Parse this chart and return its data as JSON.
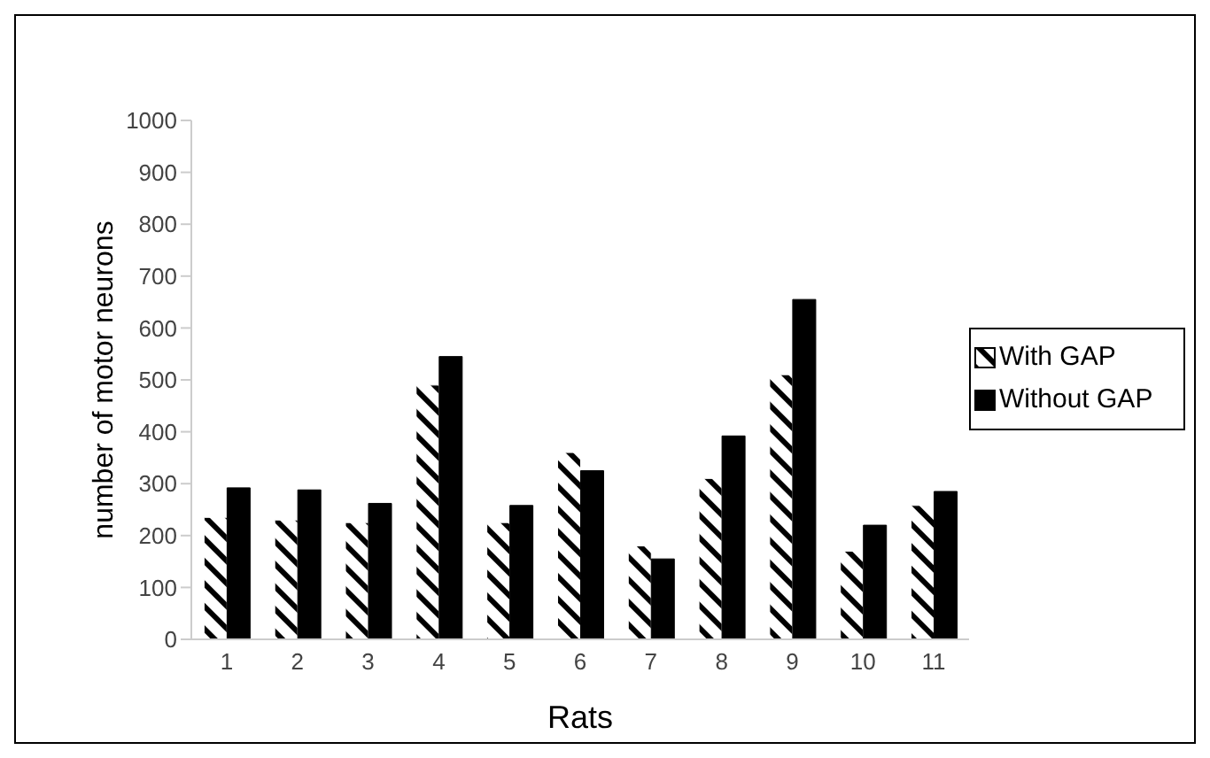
{
  "chart_data": {
    "type": "bar",
    "xlabel": "Rats",
    "ylabel": "number of motor neurons",
    "categories": [
      "1",
      "2",
      "3",
      "4",
      "5",
      "6",
      "7",
      "8",
      "9",
      "10",
      "11"
    ],
    "series": [
      {
        "name": "With GAP",
        "color": "#ffffff",
        "values": [
          235,
          230,
          225,
          490,
          225,
          360,
          180,
          310,
          510,
          170,
          258
        ]
      },
      {
        "name": "Without GAP",
        "color": "#000000",
        "values": [
          292,
          288,
          262,
          545,
          258,
          325,
          155,
          392,
          655,
          220,
          285
        ]
      }
    ],
    "ylim": [
      0,
      1000
    ],
    "yticks": [
      0,
      100,
      200,
      300,
      400,
      500,
      600,
      700,
      800,
      900,
      1000
    ],
    "grid": false,
    "legend": "right"
  }
}
